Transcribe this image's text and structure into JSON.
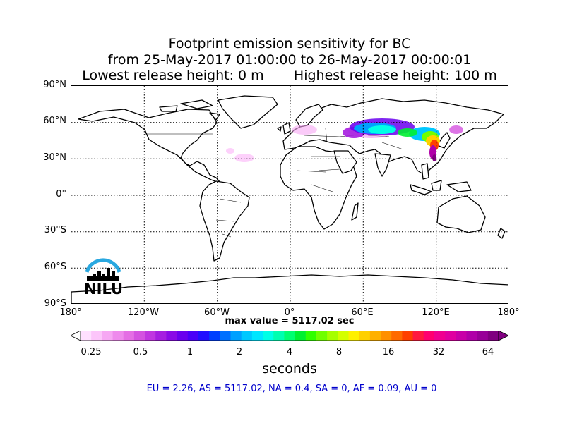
{
  "title": {
    "line1": "Footprint emission sensitivity for BC",
    "line2": "from 25-May-2017 01:00:00 to 26-May-2017 00:00:01",
    "line3": "Lowest release height: 0 m       Highest release height: 100 m"
  },
  "map": {
    "projection": "equirectangular",
    "lat_labels": [
      "90°N",
      "60°N",
      "30°N",
      "0°",
      "30°S",
      "60°S",
      "90°S"
    ],
    "lon_labels": [
      "180°",
      "120°W",
      "60°W",
      "0°",
      "60°E",
      "120°E",
      "180°"
    ],
    "gridlines": "dotted",
    "plume_colors_note": "high sensitivity over northern Eurasia and northeast China"
  },
  "max_value": "max value = 5117.02 sec",
  "colorbar": {
    "tick_labels": [
      "0.25",
      "0.5",
      "1",
      "2",
      "4",
      "8",
      "16",
      "32",
      "64"
    ],
    "colors": [
      "#ffe0ff",
      "#fcc5fa",
      "#f6a7f3",
      "#ee8aec",
      "#e46ee4",
      "#d452e0",
      "#c036e0",
      "#a61ee0",
      "#8a0ae6",
      "#6a00ee",
      "#4a00f8",
      "#2010ff",
      "#0040ff",
      "#0070ff",
      "#00a0ff",
      "#00c8ff",
      "#00e6ff",
      "#00ffe6",
      "#00ffb0",
      "#00ff70",
      "#00f030",
      "#30ff00",
      "#70ff00",
      "#a6ff00",
      "#d4ff00",
      "#fff000",
      "#ffd000",
      "#ffb000",
      "#ff9000",
      "#ff6a00",
      "#ff4000",
      "#ff1a40",
      "#ff0070",
      "#f00090",
      "#e000a0",
      "#c800a8",
      "#b000a8",
      "#980098",
      "#800080"
    ],
    "label": "seconds",
    "extend": "both"
  },
  "stats": "EU = 2.26,  AS = 5117.02,  NA = 0.4,  SA = 0,  AF = 0.09,  AU = 0",
  "logo": {
    "text": "NILU",
    "arc_color": "#29a8e0"
  }
}
